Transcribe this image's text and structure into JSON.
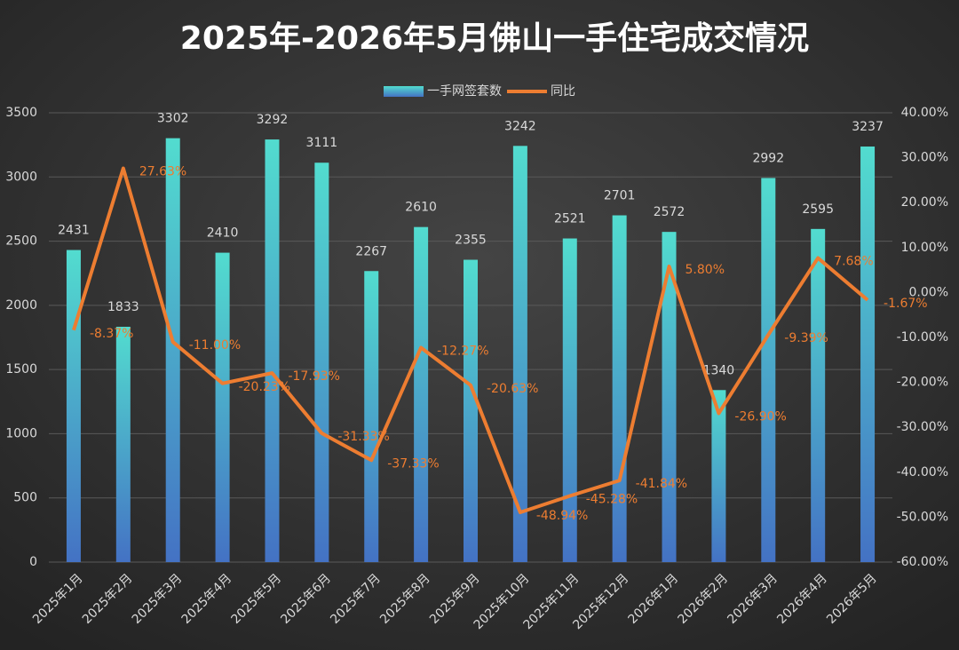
{
  "chart_data": {
    "type": "combo",
    "title": "2025年-2026年5月佛山一手住宅成交情况",
    "categories": [
      "2025年1月",
      "2025年2月",
      "2025年3月",
      "2025年4月",
      "2025年5月",
      "2025年6月",
      "2025年7月",
      "2025年8月",
      "2025年9月",
      "2025年10月",
      "2025年11月",
      "2025年12月",
      "2026年1月",
      "2026年2月",
      "2026年3月",
      "2026年4月",
      "2026年5月"
    ],
    "series": [
      {
        "name": "一手网签套数",
        "type": "bar",
        "color": [
          "#52dccf",
          "#4472c4"
        ],
        "values": [
          2431,
          1833,
          3302,
          2410,
          3292,
          3111,
          2267,
          2610,
          2355,
          3242,
          2521,
          2701,
          2572,
          1340,
          2992,
          2595,
          3237
        ]
      },
      {
        "name": "同比",
        "type": "line",
        "axis": "y2",
        "color": "#ed7d31",
        "values": [
          -8.37,
          27.63,
          -11.0,
          -20.23,
          -17.93,
          -31.33,
          -37.33,
          -12.27,
          -20.63,
          -48.94,
          -45.28,
          -41.84,
          5.8,
          -26.9,
          -9.39,
          7.68,
          -1.67
        ],
        "value_labels": [
          "-8.37%",
          "27.63%",
          "-11.00%",
          "-20.23%",
          "-17.93%",
          "-31.33%",
          "-37.33%",
          "-12.27%",
          "-20.63%",
          "-48.94%",
          "-45.28%",
          "-41.84%",
          "5.80%",
          "-26.90%",
          "-9.39%",
          "7.68%",
          "-1.67%"
        ]
      }
    ],
    "ylim": [
      0,
      3500
    ],
    "yticks": [
      0,
      500,
      1000,
      1500,
      2000,
      2500,
      3000,
      3500
    ],
    "y2lim": [
      -60,
      40
    ],
    "y2ticks": [
      {
        "value": -60,
        "label": "-60.00%"
      },
      {
        "value": -50,
        "label": "-50.00%"
      },
      {
        "value": -40,
        "label": "-40.00%"
      },
      {
        "value": -30,
        "label": "-30.00%"
      },
      {
        "value": -20,
        "label": "-20.00%"
      },
      {
        "value": -10,
        "label": "-10.00%"
      },
      {
        "value": 0,
        "label": "0.00%"
      },
      {
        "value": 10,
        "label": "10.00%"
      },
      {
        "value": 20,
        "label": "20.00%"
      },
      {
        "value": 30,
        "label": "30.00%"
      },
      {
        "value": 40,
        "label": "40.00%"
      }
    ],
    "grid": true,
    "legend": "top"
  }
}
